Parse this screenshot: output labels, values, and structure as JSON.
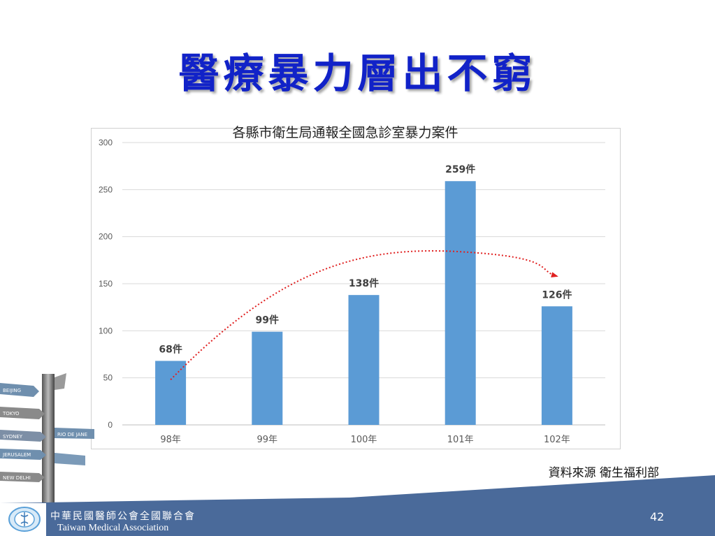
{
  "slide": {
    "title": "醫療暴力層出不窮",
    "source": "資料來源 衛生福利部",
    "page_number": "42"
  },
  "footer": {
    "org_name_zh": "中華民國醫師公會全國聯合會",
    "org_name_en": "Taiwan Medical Association",
    "band_color": "#4a6a9a"
  },
  "decoration": {
    "signs": [
      "BEIJING",
      "TOKYO",
      "SYDNEY",
      "RIO DE JANE",
      "JERUSALEM",
      "NEW DELHI"
    ]
  },
  "chart_data": {
    "type": "bar",
    "title": "各縣市衛生局通報全國急診室暴力案件",
    "categories": [
      "98年",
      "99年",
      "100年",
      "101年",
      "102年"
    ],
    "values": [
      68,
      99,
      138,
      259,
      126
    ],
    "data_labels": [
      "68件",
      "99件",
      "138件",
      "259件",
      "126件"
    ],
    "ylim": [
      0,
      300
    ],
    "yticks": [
      0,
      50,
      100,
      150,
      200,
      250,
      300
    ],
    "grid": true,
    "legend": "none",
    "bar_color": "#5b9bd5",
    "annotation": {
      "type": "dotted-trend-arrow",
      "color": "#e02020",
      "from": {
        "category": "98年",
        "value": 48
      },
      "peak": {
        "category": "101年",
        "value": 184
      },
      "to": {
        "category": "102年",
        "value": 158
      }
    }
  }
}
